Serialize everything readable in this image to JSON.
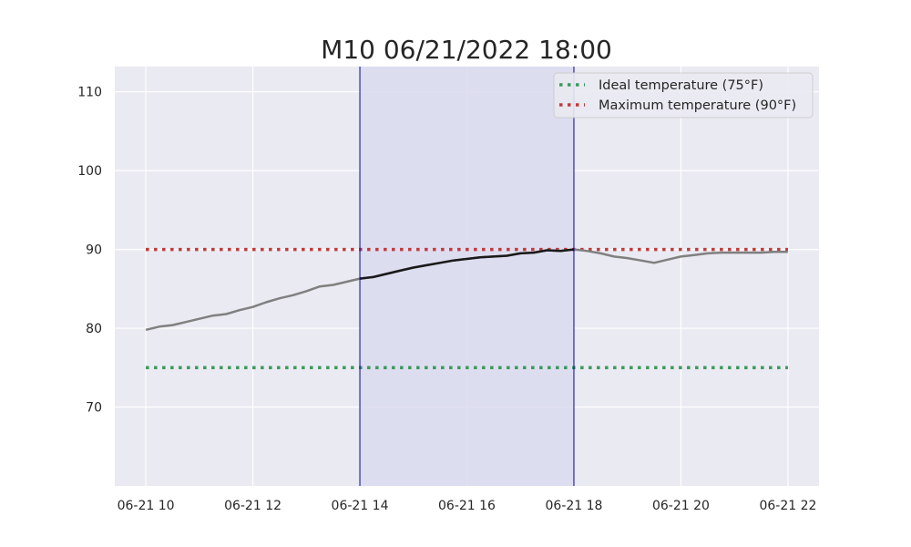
{
  "chart_data": {
    "type": "line",
    "title": "M10 06/21/2022 18:00",
    "xlabel": "",
    "ylabel": "",
    "x_tick_labels": [
      "06-21 10",
      "06-21 12",
      "06-21 14",
      "06-21 16",
      "06-21 18",
      "06-21 20",
      "06-21 22"
    ],
    "x_tick_hours": [
      10,
      12,
      14,
      16,
      18,
      20,
      22
    ],
    "x_range_hours": [
      9.42,
      22.58
    ],
    "y_ticks": [
      70,
      80,
      90,
      100,
      110
    ],
    "ylim": [
      60,
      113.2
    ],
    "grid": true,
    "legend_placement": "top-right",
    "highlight_window": {
      "start_hour": 14,
      "end_hour": 18,
      "fill": "#dcdcf0",
      "edge": "#0000aa"
    },
    "series": [
      {
        "hours": [
          10.0,
          10.25,
          10.5,
          10.75,
          11.0,
          11.25,
          11.5,
          11.75,
          12.0,
          12.25,
          12.5,
          12.75,
          13.0,
          13.25,
          13.5,
          13.75,
          14.0,
          14.25,
          14.5,
          14.75,
          15.0,
          15.25,
          15.5,
          15.75,
          16.0,
          16.25,
          16.5,
          16.75,
          17.0,
          17.25,
          17.5,
          17.75,
          18.0,
          18.25,
          18.5,
          18.75,
          19.0,
          19.25,
          19.5,
          19.75,
          20.0,
          20.25,
          20.5,
          20.75,
          21.0,
          21.25,
          21.5,
          21.75,
          22.0
        ],
        "values": [
          79.8,
          80.2,
          80.4,
          80.8,
          81.2,
          81.6,
          81.8,
          82.3,
          82.7,
          83.3,
          83.8,
          84.2,
          84.7,
          85.3,
          85.5,
          85.9,
          86.3,
          86.5,
          86.9,
          87.3,
          87.7,
          88.0,
          88.3,
          88.6,
          88.8,
          89.0,
          89.1,
          89.2,
          89.5,
          89.6,
          89.9,
          89.8,
          90.0,
          89.8,
          89.5,
          89.1,
          88.9,
          88.6,
          88.3,
          88.7,
          89.1,
          89.3,
          89.5,
          89.6,
          89.6,
          89.6,
          89.6,
          89.7,
          89.7
        ],
        "color": "#808080",
        "highlight_color": "#1a1a1a"
      }
    ],
    "reference_lines": [
      {
        "name": "Ideal temperature (75°F)",
        "value": 75,
        "color": "#3a9a5a"
      },
      {
        "name": "Maximum temperature (90°F)",
        "value": 90,
        "color": "#c03a3a"
      }
    ]
  },
  "colors": {
    "plot_background": "#eaeaf2",
    "grid": "#ffffff",
    "text": "#262626"
  }
}
